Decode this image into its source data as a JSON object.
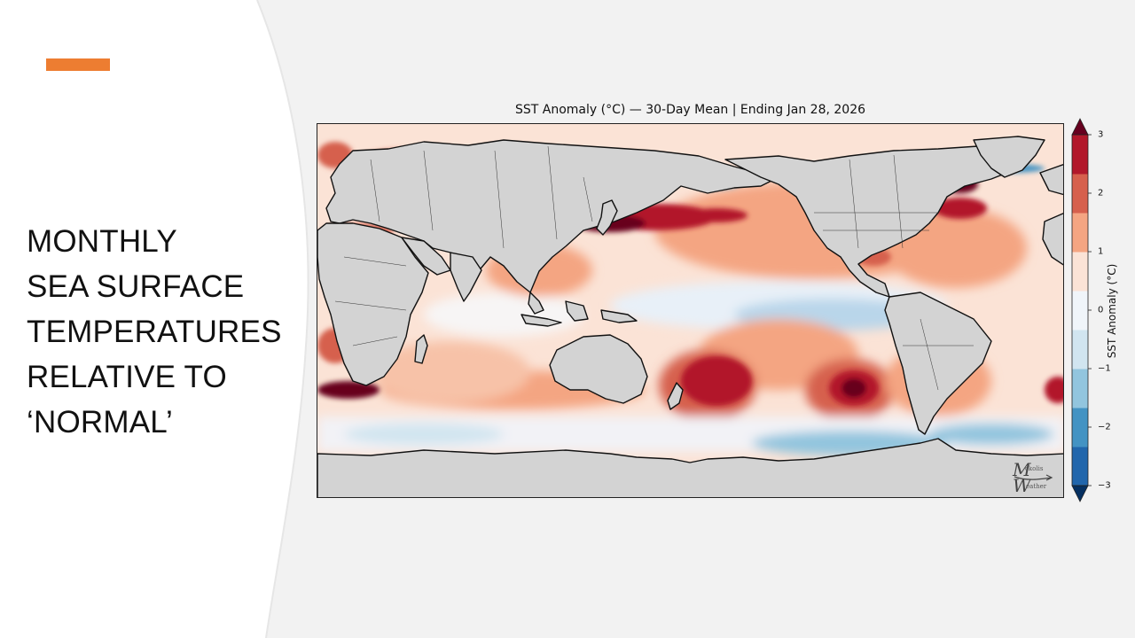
{
  "slide": {
    "title_lines": [
      "MONTHLY",
      "SEA SURFACE",
      "TEMPERATURES",
      "RELATIVE TO",
      "‘NORMAL’"
    ],
    "accent_color": "#ed7d31",
    "background_color": "#f2f2f2"
  },
  "map": {
    "title": "SST Anomaly (°C) — 30-Day Mean | Ending Jan 28, 2026",
    "projection": "plate carree, pacific-centered",
    "land_color": "#d3d3d3",
    "features": [
      "coastlines",
      "country borders",
      "US state borders"
    ]
  },
  "colorbar": {
    "label": "SST Anomaly (°C)",
    "ticks": [
      "3",
      "2",
      "1",
      "0",
      "−1",
      "−2",
      "−3"
    ],
    "tick_values": [
      3,
      2,
      1,
      0,
      -1,
      -2,
      -3
    ],
    "range": [
      -3,
      3
    ],
    "extend": "both",
    "colors": [
      "#053061",
      "#2166ac",
      "#4393c3",
      "#92c5de",
      "#d1e5f0",
      "#f0f5fa",
      "#fbe3d6",
      "#f4a582",
      "#d6604d",
      "#b2182b",
      "#67001f"
    ]
  },
  "watermark": {
    "text_top": "ckolis",
    "text_bottom": "eather"
  }
}
